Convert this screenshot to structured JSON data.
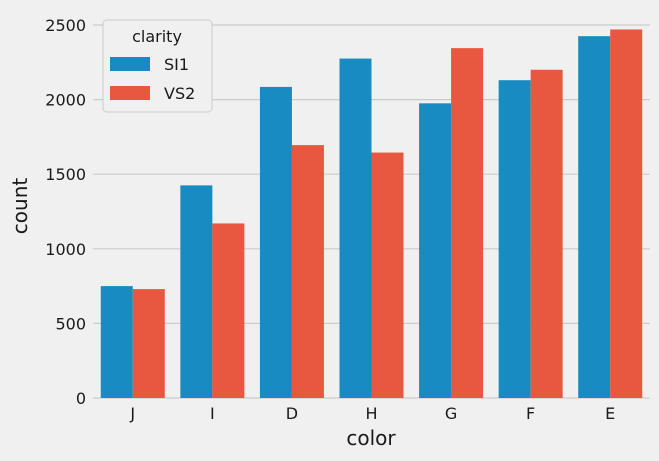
{
  "chart_data": {
    "type": "bar",
    "xlabel": "color",
    "ylabel": "count",
    "categories": [
      "J",
      "I",
      "D",
      "H",
      "G",
      "F",
      "E"
    ],
    "series": [
      {
        "name": "SI1",
        "color": "#188bc2",
        "values": [
          750,
          1425,
          2085,
          2275,
          1975,
          2130,
          2425
        ]
      },
      {
        "name": "VS2",
        "color": "#e8573f",
        "values": [
          730,
          1170,
          1695,
          1645,
          2345,
          2200,
          2470
        ]
      }
    ],
    "ylim": [
      0,
      2500
    ],
    "yticks": [
      0,
      500,
      1000,
      1500,
      2000,
      2500
    ],
    "grid": true,
    "legend": {
      "title": "clarity",
      "placement": "top-left"
    }
  }
}
